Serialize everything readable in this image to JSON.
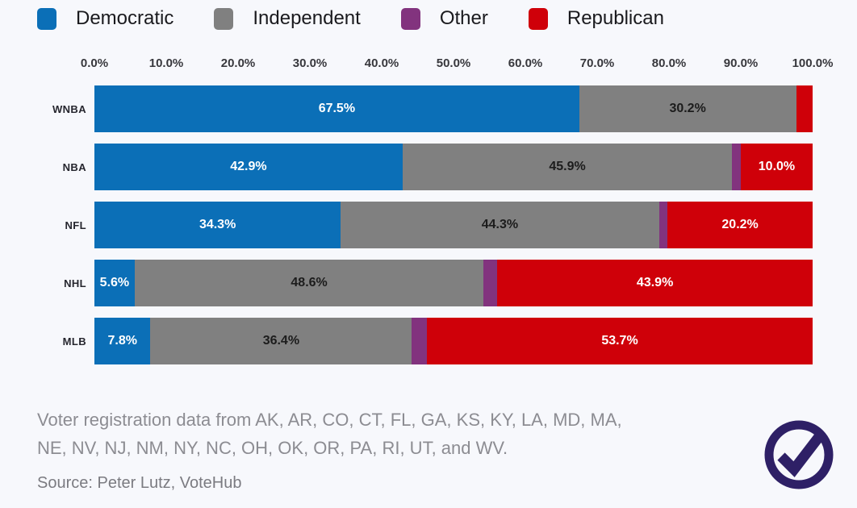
{
  "chart_data": {
    "type": "bar",
    "stacked": true,
    "orientation": "horizontal",
    "categories": [
      "WNBA",
      "NBA",
      "NFL",
      "NHL",
      "MLB"
    ],
    "series": [
      {
        "name": "Democratic",
        "color": "#0b6fb7",
        "label_color": "#ffffff",
        "values": [
          67.5,
          42.9,
          34.3,
          5.6,
          7.8
        ]
      },
      {
        "name": "Independent",
        "color": "#808080",
        "label_color": "#1c1c1c",
        "values": [
          30.2,
          45.9,
          44.3,
          48.6,
          36.4
        ]
      },
      {
        "name": "Other",
        "color": "#82337e",
        "label_color": "#ffffff",
        "values": [
          0.0,
          1.2,
          1.2,
          1.9,
          2.1
        ]
      },
      {
        "name": "Republican",
        "color": "#cf0009",
        "label_color": "#ffffff",
        "values": [
          2.3,
          10.0,
          20.2,
          43.9,
          53.7
        ]
      }
    ],
    "x_ticks": [
      "0.0%",
      "10.0%",
      "20.0%",
      "30.0%",
      "40.0%",
      "50.0%",
      "60.0%",
      "70.0%",
      "80.0%",
      "90.0%",
      "100.0%"
    ],
    "xlim": [
      0,
      100
    ],
    "value_suffix": "%",
    "label_min_pct": 5,
    "legend_position": "top",
    "grid": false
  },
  "footer": {
    "note_line1": "Voter registration data from AK, AR, CO, CT, FL, GA, KS, KY, LA, MD, MA,",
    "note_line2": "NE, NV, NJ, NM, NY, NC, OH, OK, OR, PA, RI, UT, and WV.",
    "source": "Source: Peter Lutz, VoteHub"
  },
  "icons": {
    "check_badge": "check-circle",
    "badge_color": "#2e2066"
  },
  "colors": {
    "background": "#f7f8fc",
    "democratic": "#0b6fb7",
    "independent": "#808080",
    "other": "#82337e",
    "republican": "#cf0009"
  }
}
